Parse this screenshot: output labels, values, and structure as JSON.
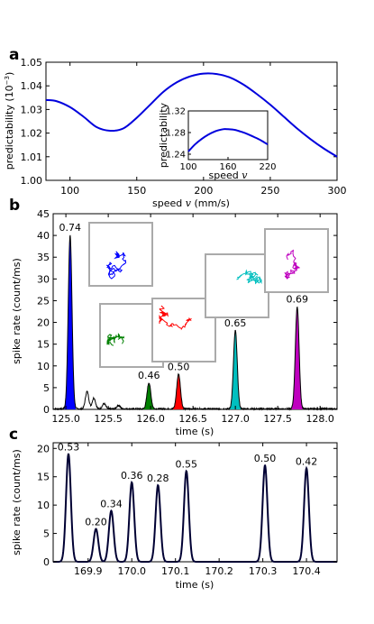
{
  "colors": {
    "line_blue": "#0000dd",
    "navy_trace": "#000033",
    "inset_border": "#aaaaaa",
    "burst_colors": [
      "#0000ff",
      "#008000",
      "#ff0000",
      "#00bfbf",
      "#bf00bf"
    ]
  },
  "chart_data": [
    {
      "id": "a",
      "panel_label": "a",
      "type": "line",
      "xlabel": "speed",
      "xlabel_var": "v",
      "xlabel_unit": "(mm/s)",
      "ylabel": "predictability (10",
      "ylabel_exp": "−3",
      "ylabel_end": ")",
      "xlim": [
        82,
        300
      ],
      "ylim": [
        1.0,
        1.05
      ],
      "xticks": [
        100,
        150,
        200,
        250,
        300
      ],
      "yticks": [
        "1.00",
        "1.01",
        "1.02",
        "1.03",
        "1.04",
        "1.05"
      ],
      "series": [
        {
          "x": [
            82,
            90,
            100,
            110,
            120,
            130,
            140,
            150,
            160,
            170,
            180,
            190,
            200,
            210,
            220,
            230,
            240,
            250,
            260,
            270,
            280,
            290,
            300
          ],
          "y": [
            1.034,
            1.0335,
            1.031,
            1.027,
            1.0225,
            1.021,
            1.022,
            1.0265,
            1.032,
            1.0375,
            1.0415,
            1.044,
            1.0452,
            1.045,
            1.0435,
            1.0405,
            1.0365,
            1.032,
            1.027,
            1.022,
            1.0175,
            1.0135,
            1.01
          ]
        }
      ],
      "inset": {
        "type": "line",
        "xlabel": "speed",
        "xlabel_var": "v",
        "ylabel": "predictability",
        "xlim": [
          100,
          220
        ],
        "ylim": [
          1.23,
          1.32
        ],
        "xticks": [
          100,
          160,
          220
        ],
        "yticks": [
          "1.24",
          "1.28",
          "1.32"
        ],
        "series": [
          {
            "x": [
              100,
              110,
              120,
              130,
              140,
              150,
              155,
              160,
              170,
              180,
              190,
              200,
              210,
              220
            ],
            "y": [
              1.245,
              1.258,
              1.268,
              1.276,
              1.282,
              1.2855,
              1.2865,
              1.2862,
              1.285,
              1.2815,
              1.277,
              1.2715,
              1.2655,
              1.258
            ]
          }
        ]
      }
    },
    {
      "id": "b",
      "panel_label": "b",
      "type": "line",
      "xlabel": "time (s)",
      "ylabel": "spike rate (count/ms)",
      "xlim": [
        124.85,
        128.2
      ],
      "ylim": [
        0,
        45
      ],
      "xticks": [
        "125.0",
        "125.5",
        "126.0",
        "126.5",
        "127.0",
        "127.5",
        "128.0"
      ],
      "yticks": [
        0,
        5,
        10,
        15,
        20,
        25,
        30,
        35,
        40,
        45
      ],
      "peaks": [
        {
          "t": 125.05,
          "value": 40,
          "label": "0.74",
          "color_index": 0
        },
        {
          "t": 125.98,
          "value": 6,
          "label": "0.46",
          "color_index": 1
        },
        {
          "t": 126.33,
          "value": 8,
          "label": "0.50",
          "color_index": 2
        },
        {
          "t": 127.0,
          "value": 18,
          "label": "0.65",
          "color_index": 3
        },
        {
          "t": 127.73,
          "value": 23.5,
          "label": "0.69",
          "color_index": 4
        }
      ],
      "minor_bumps": [
        {
          "t": 125.25,
          "value": 4
        },
        {
          "t": 125.33,
          "value": 2.5
        },
        {
          "t": 125.45,
          "value": 1.2
        },
        {
          "t": 125.62,
          "value": 0.8
        }
      ]
    },
    {
      "id": "c",
      "panel_label": "c",
      "type": "line",
      "xlabel": "time (s)",
      "ylabel": "spike rate (count/ms)",
      "xlim": [
        169.82,
        170.47
      ],
      "ylim": [
        0,
        21
      ],
      "xticks": [
        "169.9",
        "170.0",
        "170.1",
        "170.2",
        "170.3",
        "170.4"
      ],
      "yticks": [
        0,
        5,
        10,
        15,
        20
      ],
      "peaks": [
        {
          "t": 169.855,
          "value": 19,
          "label": "0.53"
        },
        {
          "t": 169.918,
          "value": 5.8,
          "label": "0.20"
        },
        {
          "t": 169.953,
          "value": 9,
          "label": "0.34"
        },
        {
          "t": 170.0,
          "value": 14,
          "label": "0.36"
        },
        {
          "t": 170.06,
          "value": 13.5,
          "label": "0.28"
        },
        {
          "t": 170.125,
          "value": 16,
          "label": "0.55"
        },
        {
          "t": 170.305,
          "value": 17,
          "label": "0.50"
        },
        {
          "t": 170.4,
          "value": 16.5,
          "label": "0.42"
        }
      ]
    }
  ]
}
